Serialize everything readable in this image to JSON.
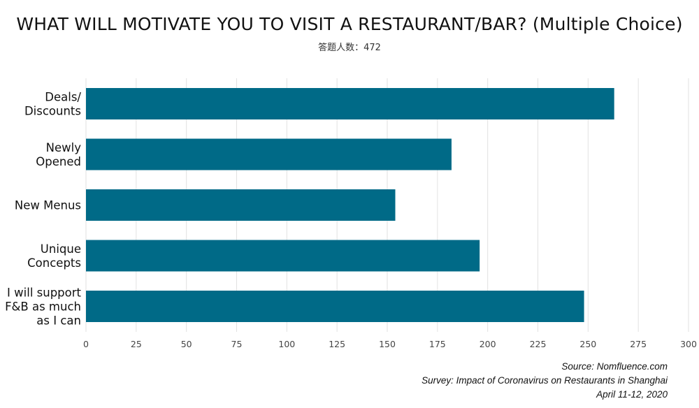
{
  "title": "WHAT WILL MOTIVATE YOU TO VISIT A RESTAURANT/BAR? (Multiple Choice)",
  "subtitle": "答题人数：472",
  "source": {
    "line1": "Source: Nomfluence.com",
    "line2": "Survey: Impact of Coronavirus on Restaurants in Shanghai",
    "line3": "April 11-12, 2020"
  },
  "colors": {
    "bar": "#006a87",
    "grid": "#e2e2e2",
    "axis": "#444444"
  },
  "chart_data": {
    "type": "bar",
    "orientation": "horizontal",
    "categories": [
      [
        "Deals/",
        "Discounts"
      ],
      [
        "Newly",
        "Opened"
      ],
      [
        "New Menus"
      ],
      [
        "Unique",
        "Concepts"
      ],
      [
        "I will support",
        "F&B as much",
        "as I can"
      ]
    ],
    "values": [
      263,
      182,
      154,
      196,
      248
    ],
    "xlim": [
      0,
      300
    ],
    "xticks": [
      0,
      25,
      50,
      75,
      100,
      125,
      150,
      175,
      200,
      225,
      250,
      275,
      300
    ],
    "grid": true
  }
}
